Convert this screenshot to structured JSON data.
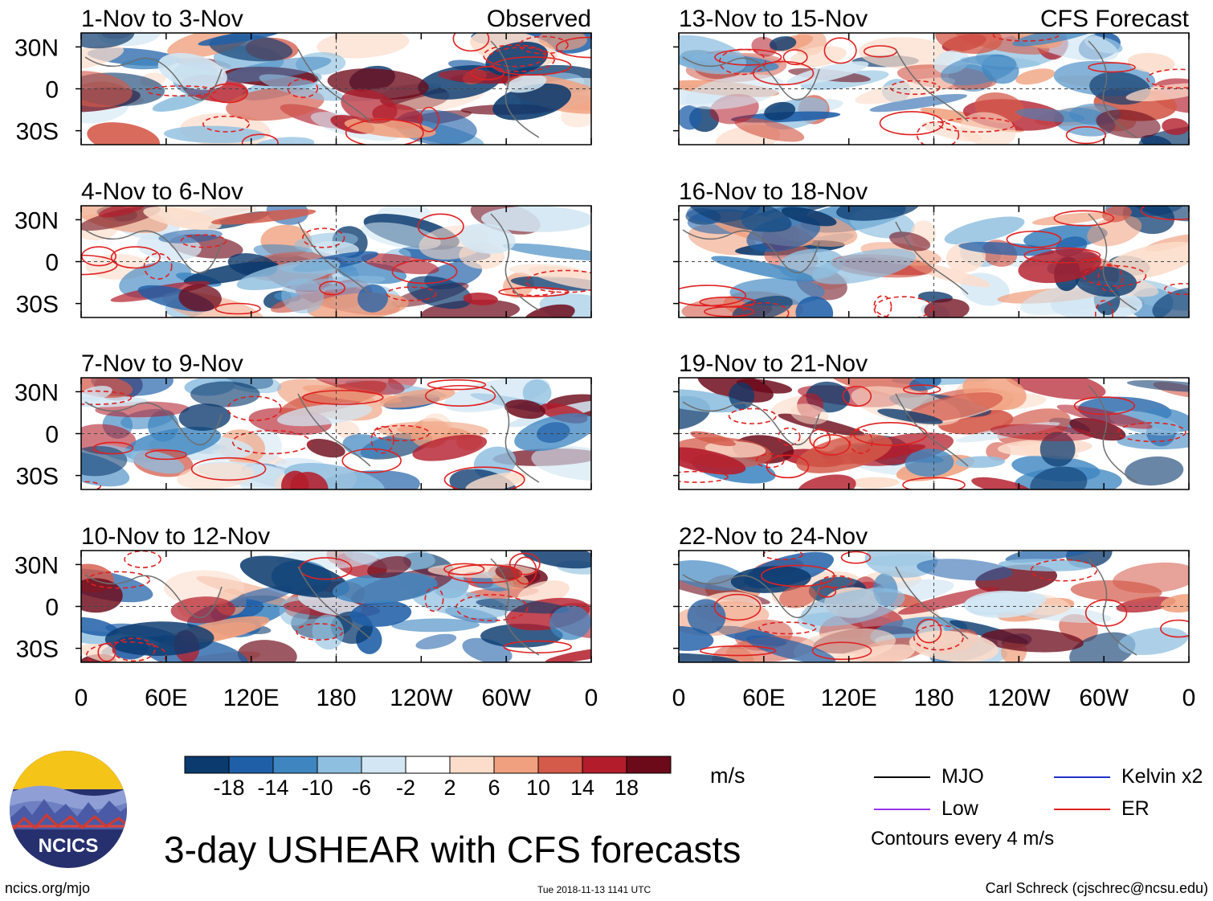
{
  "figure": {
    "main_title": "3-day USHEAR with CFS forecasts",
    "site": "ncics.org/mjo",
    "timestamp": "Tue 2018-11-13 1141 UTC",
    "author": "Carl Schreck (cjschrec@ncsu.edu)",
    "logo_text": "NCICS",
    "units": "m/s",
    "contour_note": "Contours every 4 m/s",
    "observed_label": "Observed",
    "forecast_label": "CFS Forecast"
  },
  "legend": [
    {
      "label": "MJO",
      "color": "#000000"
    },
    {
      "label": "Kelvin x2",
      "color": "#2233cc"
    },
    {
      "label": "Low",
      "color": "#9933ee"
    },
    {
      "label": "ER",
      "color": "#e02020"
    }
  ],
  "colorbar": {
    "colors": [
      "#0b3a6e",
      "#1f5fa8",
      "#3f86c1",
      "#8fbfe0",
      "#d2e6f3",
      "#ffffff",
      "#fcdcca",
      "#f0a07e",
      "#d45a4a",
      "#b31d2b",
      "#6d0a1a"
    ],
    "tick_labels": [
      "-18",
      "-14",
      "-10",
      "-6",
      "-2",
      "2",
      "6",
      "10",
      "14",
      "18"
    ]
  },
  "chart_data": [
    {
      "type": "heatmap",
      "column": "observed",
      "title": "1-Nov to 3-Nov",
      "corner_label": "Observed",
      "yticks": [
        "30N",
        "0",
        "30S"
      ],
      "xticks": [],
      "ylim": [
        -40,
        40
      ],
      "xlim": [
        0,
        360
      ],
      "seed": 11
    },
    {
      "type": "heatmap",
      "column": "observed",
      "title": "4-Nov to 6-Nov",
      "corner_label": "",
      "yticks": [
        "30N",
        "0",
        "30S"
      ],
      "xticks": [],
      "ylim": [
        -40,
        40
      ],
      "xlim": [
        0,
        360
      ],
      "seed": 23
    },
    {
      "type": "heatmap",
      "column": "observed",
      "title": "7-Nov to 9-Nov",
      "corner_label": "",
      "yticks": [
        "30N",
        "0",
        "30S"
      ],
      "xticks": [],
      "ylim": [
        -40,
        40
      ],
      "xlim": [
        0,
        360
      ],
      "seed": 37
    },
    {
      "type": "heatmap",
      "column": "observed",
      "title": "10-Nov to 12-Nov",
      "corner_label": "",
      "yticks": [
        "30N",
        "0",
        "30S"
      ],
      "xticks": [
        "0",
        "60E",
        "120E",
        "180",
        "120W",
        "60W",
        "0"
      ],
      "ylim": [
        -40,
        40
      ],
      "xlim": [
        0,
        360
      ],
      "seed": 41
    },
    {
      "type": "heatmap",
      "column": "forecast",
      "title": "13-Nov to 15-Nov",
      "corner_label": "CFS Forecast",
      "yticks": [],
      "xticks": [],
      "ylim": [
        -40,
        40
      ],
      "xlim": [
        0,
        360
      ],
      "seed": 53
    },
    {
      "type": "heatmap",
      "column": "forecast",
      "title": "16-Nov to 18-Nov",
      "corner_label": "",
      "yticks": [],
      "xticks": [],
      "ylim": [
        -40,
        40
      ],
      "xlim": [
        0,
        360
      ],
      "seed": 67
    },
    {
      "type": "heatmap",
      "column": "forecast",
      "title": "19-Nov to 21-Nov",
      "corner_label": "",
      "yticks": [],
      "xticks": [],
      "ylim": [
        -40,
        40
      ],
      "xlim": [
        0,
        360
      ],
      "seed": 71
    },
    {
      "type": "heatmap",
      "column": "forecast",
      "title": "22-Nov to 24-Nov",
      "corner_label": "",
      "yticks": [],
      "xticks": [
        "0",
        "60E",
        "120E",
        "180",
        "120W",
        "60W",
        "0"
      ],
      "ylim": [
        -40,
        40
      ],
      "xlim": [
        0,
        360
      ],
      "seed": 89
    }
  ]
}
